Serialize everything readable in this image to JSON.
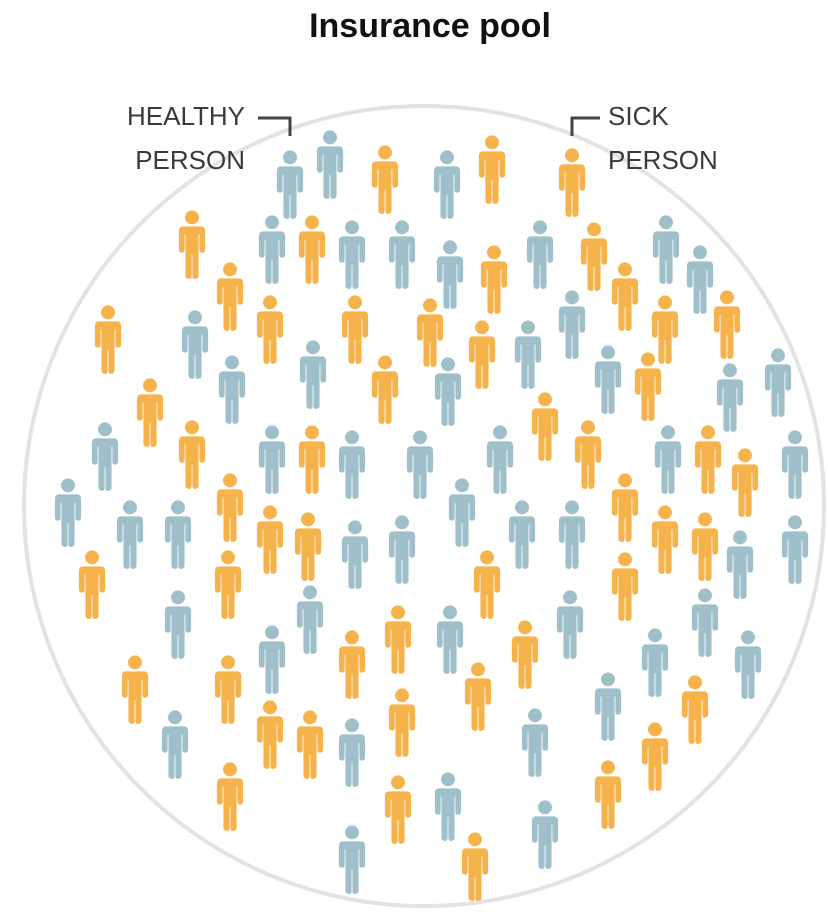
{
  "title": "Insurance pool",
  "healthy_label": [
    "HEALTHY",
    "PERSON"
  ],
  "sick_label": [
    "SICK",
    "PERSON"
  ]
}
